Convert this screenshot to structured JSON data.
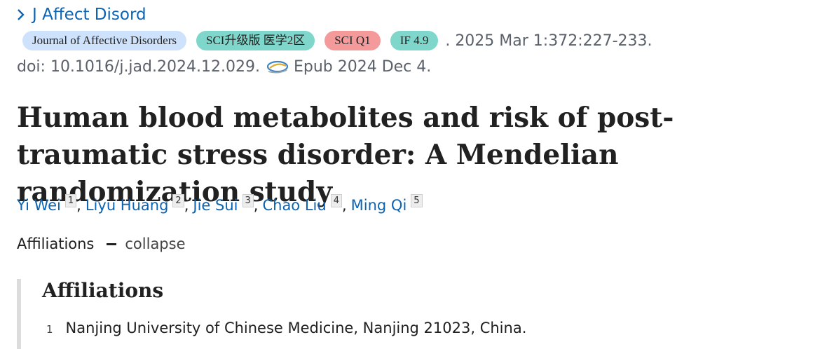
{
  "journal": {
    "short_name": "J Affect Disord"
  },
  "badges": [
    {
      "label": "Journal of Affective Disorders",
      "color": "#cfe2fb"
    },
    {
      "label": "SCI升级版 医学2区",
      "color": "#7fd6cb"
    },
    {
      "label": "SCI Q1",
      "color": "#f59a9a"
    },
    {
      "label": "IF 4.9",
      "color": "#7fd6cb"
    }
  ],
  "publication": {
    "date_volume_pages": ". 2025 Mar 1:372:227-233.",
    "doi": "doi: 10.1016/j.jad.2024.12.029.",
    "epub_icon": "epub-swirl-icon",
    "epub": "Epub 2024 Dec 4."
  },
  "article": {
    "title": "Human blood metabolites and risk of post-traumatic stress disorder: A Mendelian randomization study"
  },
  "authors": [
    {
      "name": "Yi Wei",
      "aff": "1"
    },
    {
      "name": "Liyu Huang",
      "aff": "2"
    },
    {
      "name": "Jie Sui",
      "aff": "3"
    },
    {
      "name": "Chao Liu",
      "aff": "4"
    },
    {
      "name": "Ming Qi",
      "aff": "5"
    }
  ],
  "affiliations_toggle": {
    "label": "Affiliations",
    "action": "collapse"
  },
  "affiliations": {
    "heading": "Affiliations",
    "items": [
      {
        "num": "1",
        "text": "Nanjing University of Chinese Medicine, Nanjing 21023, China."
      }
    ]
  },
  "colors": {
    "link": "#0b64b4",
    "text": "#212121",
    "muted": "#5b616b"
  }
}
